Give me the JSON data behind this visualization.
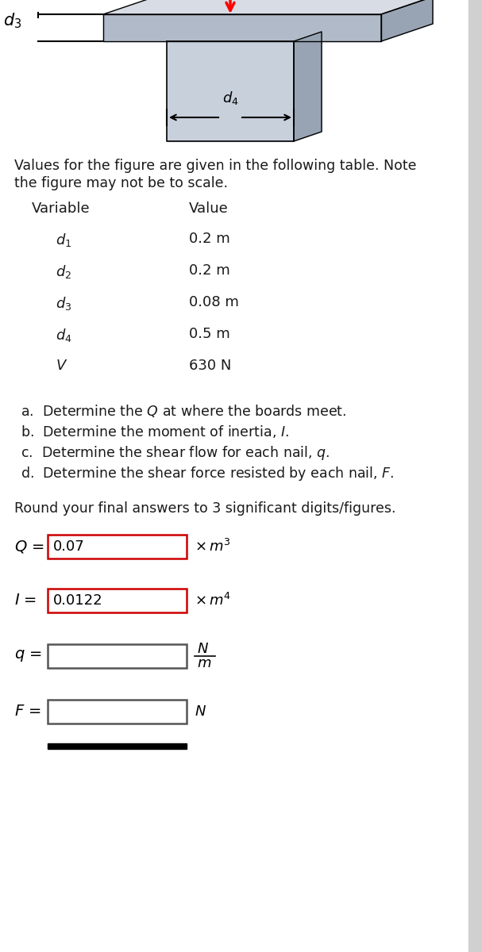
{
  "intro_text1": "Values for the figure are given in the following table. Note",
  "intro_text2": "the figure may not be to scale.",
  "var_header": "Variable",
  "val_header": "Value",
  "row_vars_display": [
    "d_1",
    "d_2",
    "d_3",
    "d_4",
    "V"
  ],
  "values": [
    "0.2 m",
    "0.2 m",
    "0.08 m",
    "0.5 m",
    "630 N"
  ],
  "q_items": [
    "a.  Determine the $Q$ at where the boards meet.",
    "b.  Determine the moment of inertia, $I$.",
    "c.  Determine the shear flow for each nail, $q$.",
    "d.  Determine the shear force resisted by each nail, $F$."
  ],
  "round_text": "Round your final answers to 3 significant digits/figures.",
  "Q_value": "0.07",
  "I_value": "0.0122",
  "bg_color": "#ffffff",
  "text_color": "#1a1a1a",
  "diagram_light": "#c8d0dc",
  "diagram_mid": "#b0bac8",
  "diagram_dark": "#98a4b4",
  "diagram_top": "#d8dce4"
}
